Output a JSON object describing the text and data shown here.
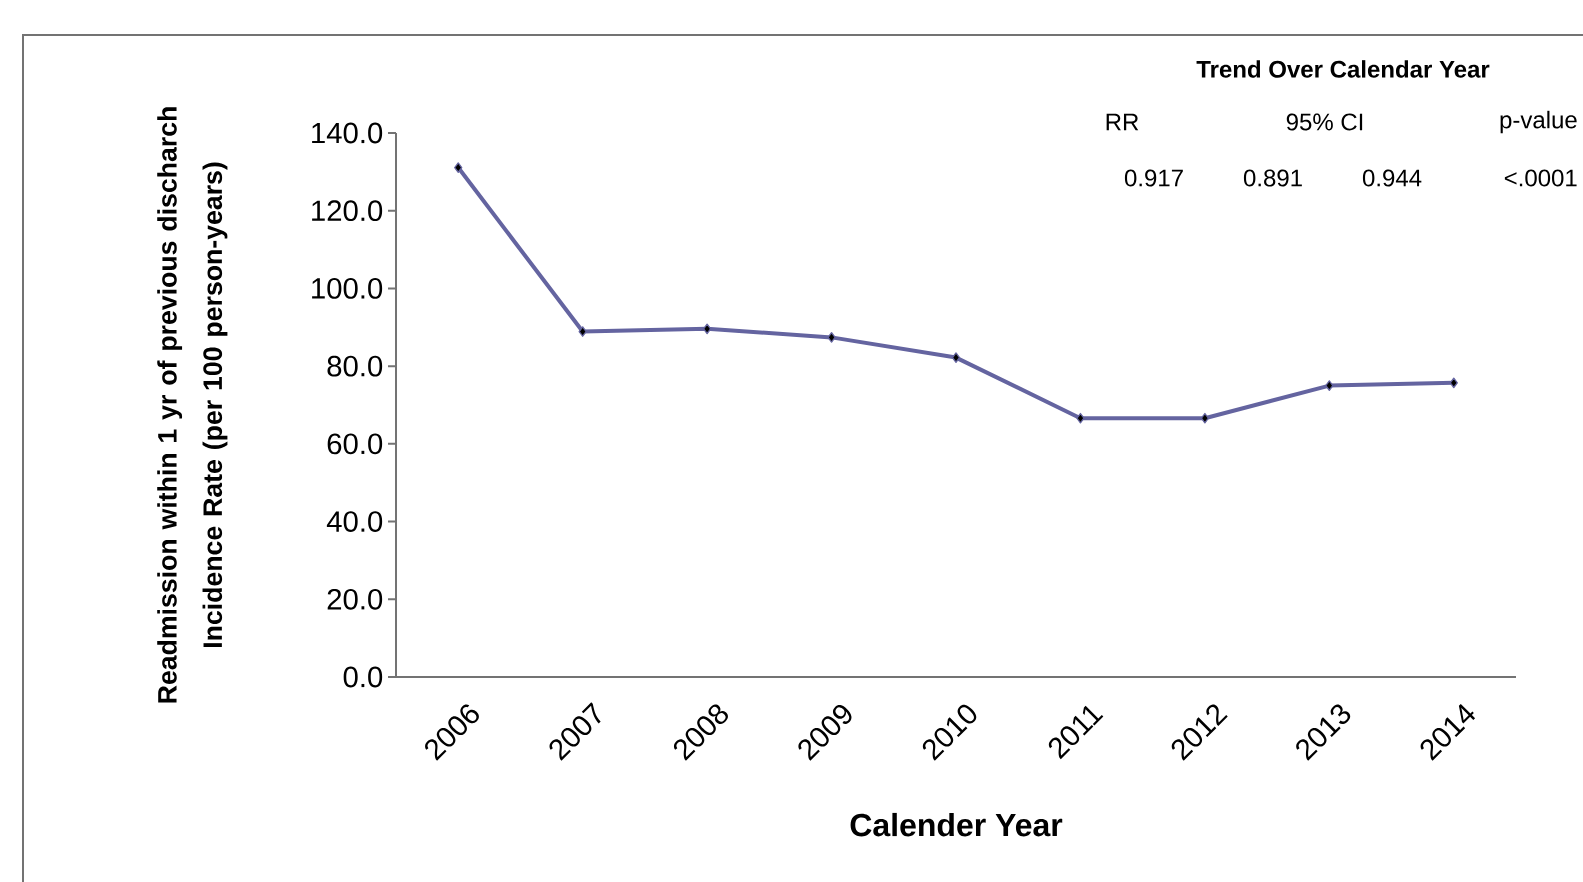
{
  "chart_data": {
    "type": "line",
    "xlabel": "Calender Year",
    "ylabel": "Readmission within 1 yr of previous discharch Incidence Rate (per 100 person-years)",
    "categories": [
      "2006",
      "2007",
      "2008",
      "2009",
      "2010",
      "2011",
      "2012",
      "2013",
      "2014"
    ],
    "series": [
      {
        "color": "#6464a0",
        "values": [
          131.1,
          88.9,
          89.6,
          87.4,
          82.2,
          66.6,
          66.6,
          75.0,
          75.7
        ]
      }
    ],
    "ylim": [
      0,
      140
    ],
    "yticks": [
      {
        "value": 0,
        "label": "0.0"
      },
      {
        "value": 20,
        "label": "20.0"
      },
      {
        "value": 40,
        "label": "40.0"
      },
      {
        "value": 60,
        "label": "60.0"
      },
      {
        "value": 80,
        "label": "80.0"
      },
      {
        "value": 100,
        "label": "100.0"
      },
      {
        "value": 120,
        "label": "120.0"
      },
      {
        "value": 140,
        "label": "140.0"
      }
    ],
    "marker": "diamond",
    "line_style": "solid",
    "annotations": [
      "Trend Over Calendar Year",
      "RR",
      "95% CI",
      "p-value",
      "0.917",
      "0.891",
      "0.944",
      "<.0001"
    ]
  }
}
